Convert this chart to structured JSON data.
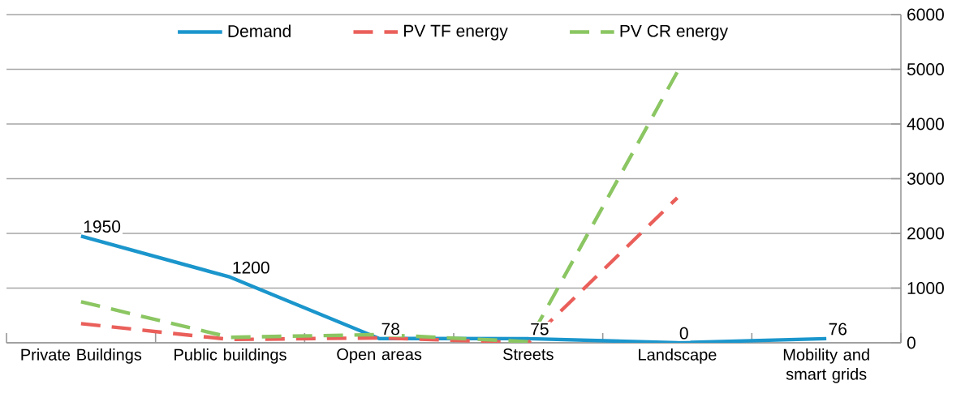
{
  "chart_data": {
    "type": "line",
    "categories": [
      "Private Buildings",
      "Public buildings",
      "Open areas",
      "Streets",
      "Landscape",
      "Mobility and smart grids"
    ],
    "series": [
      {
        "name": "Demand",
        "color": "#1b96cc",
        "line_style": "solid",
        "values": [
          1950,
          1200,
          78,
          75,
          0,
          76
        ],
        "value_labels": [
          "1950",
          "1200",
          "78",
          "75",
          "0",
          "76"
        ]
      },
      {
        "name": "PV TF energy",
        "color": "#ea5f5a",
        "line_style": "dashed",
        "values": [
          350,
          60,
          90,
          0,
          2650,
          null
        ]
      },
      {
        "name": "PV CR energy",
        "color": "#8bc662",
        "line_style": "dashed",
        "values": [
          750,
          100,
          150,
          20,
          4950,
          null
        ]
      }
    ],
    "ylim": [
      0,
      6000
    ],
    "yticks": [
      0,
      1000,
      2000,
      3000,
      4000,
      5000,
      6000
    ],
    "grid": "y",
    "legend": "top",
    "marker": "none"
  }
}
